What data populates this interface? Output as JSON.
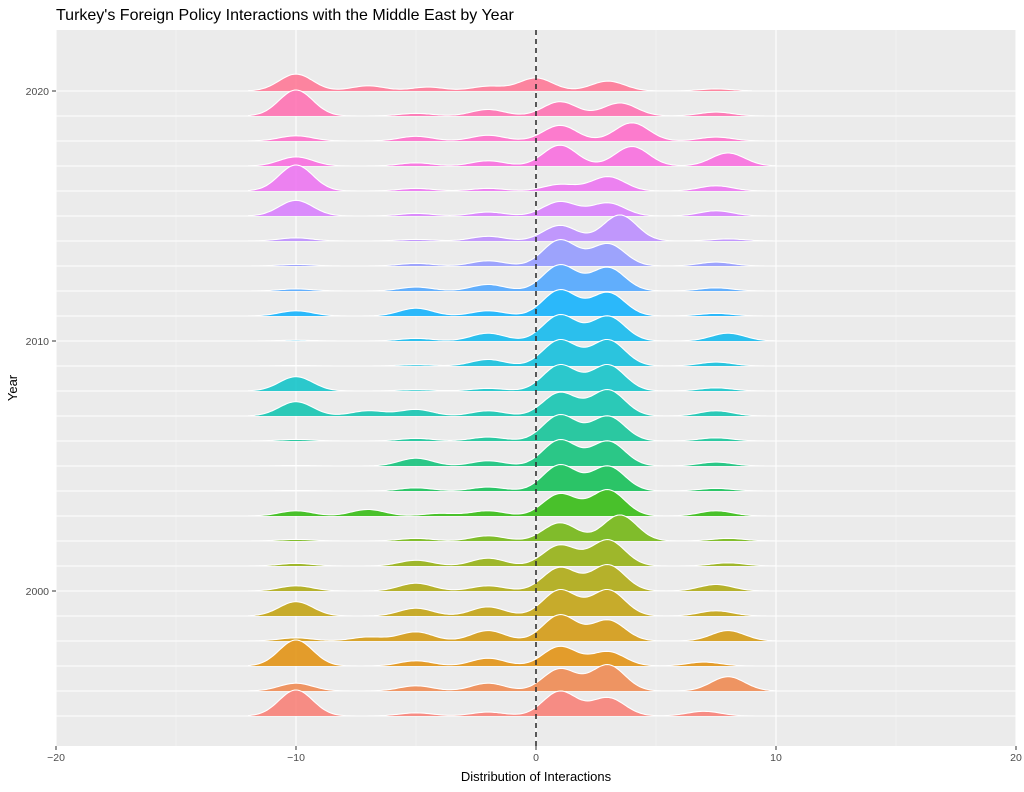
{
  "chart_data": {
    "type": "area",
    "subtype": "ridgeline",
    "title": "Turkey's Foreign Policy Interactions with the Middle East by Year",
    "xlabel": "Distribution of Interactions",
    "ylabel": "Year",
    "xlim": [
      -20,
      20
    ],
    "x_ticks": [
      -20,
      -10,
      0,
      10,
      20
    ],
    "x_tick_labels": [
      "−20",
      "−10",
      "0",
      "10",
      "20"
    ],
    "y_ticks": [
      2000,
      2010,
      2020
    ],
    "y_tick_labels": [
      "2000",
      "2010",
      "2020"
    ],
    "years": [
      1995,
      1996,
      1997,
      1998,
      1999,
      2000,
      2001,
      2002,
      2003,
      2004,
      2005,
      2006,
      2007,
      2008,
      2009,
      2010,
      2011,
      2012,
      2013,
      2014,
      2015,
      2016,
      2017,
      2018,
      2019,
      2020
    ],
    "reference_line": {
      "x": 0,
      "style": "dashed"
    },
    "background": "#ebebeb",
    "grid": true,
    "legend": "none",
    "peaks": [
      {
        "year": 1995,
        "range": [
          -12,
          11
        ],
        "peaks": [
          [
            -10,
            1.0
          ],
          [
            -5,
            0.12
          ],
          [
            -2,
            0.15
          ],
          [
            1,
            0.95
          ],
          [
            3,
            0.7
          ],
          [
            7,
            0.18
          ]
        ]
      },
      {
        "year": 1996,
        "range": [
          -12,
          10
        ],
        "peaks": [
          [
            -10,
            0.3
          ],
          [
            -5,
            0.2
          ],
          [
            -2,
            0.3
          ],
          [
            1,
            0.85
          ],
          [
            3,
            1.0
          ],
          [
            8,
            0.55
          ]
        ]
      },
      {
        "year": 1997,
        "range": [
          -12,
          11
        ],
        "peaks": [
          [
            -10,
            1.0
          ],
          [
            -5,
            0.2
          ],
          [
            -2,
            0.3
          ],
          [
            1,
            0.75
          ],
          [
            3,
            0.55
          ],
          [
            7,
            0.15
          ]
        ]
      },
      {
        "year": 1998,
        "range": [
          -12,
          10
        ],
        "peaks": [
          [
            -10,
            0.12
          ],
          [
            -7,
            0.15
          ],
          [
            -5,
            0.35
          ],
          [
            -2,
            0.4
          ],
          [
            1,
            1.0
          ],
          [
            3,
            0.8
          ],
          [
            8,
            0.4
          ]
        ]
      },
      {
        "year": 1999,
        "range": [
          -12,
          10
        ],
        "peaks": [
          [
            -10,
            0.55
          ],
          [
            -5,
            0.3
          ],
          [
            -2,
            0.35
          ],
          [
            1,
            1.0
          ],
          [
            3,
            1.0
          ],
          [
            7.5,
            0.2
          ]
        ]
      },
      {
        "year": 2000,
        "range": [
          -12,
          10
        ],
        "peaks": [
          [
            -10,
            0.2
          ],
          [
            -5,
            0.3
          ],
          [
            -2,
            0.2
          ],
          [
            1,
            0.9
          ],
          [
            3,
            1.0
          ],
          [
            7.5,
            0.25
          ]
        ]
      },
      {
        "year": 2001,
        "range": [
          -12,
          10
        ],
        "peaks": [
          [
            -10,
            0.1
          ],
          [
            -5,
            0.22
          ],
          [
            -2,
            0.3
          ],
          [
            1,
            0.8
          ],
          [
            3,
            1.0
          ],
          [
            8,
            0.12
          ]
        ]
      },
      {
        "year": 2002,
        "range": [
          -12,
          10
        ],
        "peaks": [
          [
            -10,
            0.06
          ],
          [
            -5,
            0.1
          ],
          [
            -2,
            0.2
          ],
          [
            1,
            0.7
          ],
          [
            3.5,
            1.0
          ],
          [
            8,
            0.1
          ]
        ]
      },
      {
        "year": 2003,
        "range": [
          -12,
          10
        ],
        "peaks": [
          [
            -10,
            0.2
          ],
          [
            -7,
            0.25
          ],
          [
            -4,
            0.1
          ],
          [
            -2,
            0.2
          ],
          [
            1,
            0.85
          ],
          [
            3,
            1.0
          ],
          [
            7.5,
            0.2
          ]
        ]
      },
      {
        "year": 2004,
        "range": [
          -12,
          10
        ],
        "peaks": [
          [
            -10,
            0.02
          ],
          [
            -5,
            0.12
          ],
          [
            -2,
            0.15
          ],
          [
            1,
            1.0
          ],
          [
            3,
            0.95
          ],
          [
            7.5,
            0.1
          ]
        ]
      },
      {
        "year": 2005,
        "range": [
          -12,
          10
        ],
        "peaks": [
          [
            -10,
            0.02
          ],
          [
            -5,
            0.3
          ],
          [
            -2,
            0.2
          ],
          [
            1,
            1.0
          ],
          [
            3,
            0.95
          ],
          [
            7.5,
            0.15
          ]
        ]
      },
      {
        "year": 2006,
        "range": [
          -12,
          10
        ],
        "peaks": [
          [
            -10,
            0.06
          ],
          [
            -5,
            0.1
          ],
          [
            -2,
            0.15
          ],
          [
            1,
            1.0
          ],
          [
            3,
            0.95
          ],
          [
            7.5,
            0.12
          ]
        ]
      },
      {
        "year": 2007,
        "range": [
          -12,
          10
        ],
        "peaks": [
          [
            -10,
            0.55
          ],
          [
            -7,
            0.2
          ],
          [
            -5,
            0.25
          ],
          [
            -2,
            0.2
          ],
          [
            1,
            0.9
          ],
          [
            3,
            1.0
          ],
          [
            7.5,
            0.2
          ]
        ]
      },
      {
        "year": 2008,
        "range": [
          -12,
          11
        ],
        "peaks": [
          [
            -10,
            0.55
          ],
          [
            -5,
            0.05
          ],
          [
            -2,
            0.1
          ],
          [
            1,
            1.0
          ],
          [
            3,
            1.0
          ],
          [
            7.5,
            0.12
          ]
        ]
      },
      {
        "year": 2009,
        "range": [
          -12,
          10
        ],
        "peaks": [
          [
            -10,
            0.02
          ],
          [
            -5,
            0.05
          ],
          [
            -2,
            0.25
          ],
          [
            1,
            1.0
          ],
          [
            3,
            1.0
          ],
          [
            7.5,
            0.15
          ]
        ]
      },
      {
        "year": 2010,
        "range": [
          -12,
          10
        ],
        "peaks": [
          [
            -10,
            0.03
          ],
          [
            -5,
            0.1
          ],
          [
            -2,
            0.3
          ],
          [
            1,
            1.0
          ],
          [
            3,
            0.95
          ],
          [
            8,
            0.3
          ]
        ]
      },
      {
        "year": 2011,
        "range": [
          -12,
          10
        ],
        "peaks": [
          [
            -10,
            0.2
          ],
          [
            -5,
            0.3
          ],
          [
            -2,
            0.2
          ],
          [
            1,
            1.0
          ],
          [
            3,
            0.9
          ],
          [
            7.5,
            0.1
          ]
        ]
      },
      {
        "year": 2012,
        "range": [
          -12,
          10
        ],
        "peaks": [
          [
            -10,
            0.08
          ],
          [
            -5,
            0.15
          ],
          [
            -2,
            0.25
          ],
          [
            1,
            1.0
          ],
          [
            3,
            0.9
          ],
          [
            7.5,
            0.12
          ]
        ]
      },
      {
        "year": 2013,
        "range": [
          -12,
          10
        ],
        "peaks": [
          [
            -10,
            0.06
          ],
          [
            -5,
            0.1
          ],
          [
            -2,
            0.2
          ],
          [
            1,
            1.0
          ],
          [
            3,
            0.85
          ],
          [
            7.5,
            0.15
          ]
        ]
      },
      {
        "year": 2014,
        "range": [
          -12,
          10
        ],
        "peaks": [
          [
            -10,
            0.12
          ],
          [
            -5,
            0.06
          ],
          [
            -2,
            0.18
          ],
          [
            1,
            0.6
          ],
          [
            3.5,
            1.0
          ],
          [
            8,
            0.08
          ]
        ]
      },
      {
        "year": 2015,
        "range": [
          -12,
          11
        ],
        "peaks": [
          [
            -10,
            0.6
          ],
          [
            -5,
            0.1
          ],
          [
            -2,
            0.15
          ],
          [
            1,
            0.55
          ],
          [
            3,
            0.5
          ],
          [
            7.5,
            0.2
          ]
        ]
      },
      {
        "year": 2016,
        "range": [
          -12,
          10
        ],
        "peaks": [
          [
            -10,
            1.0
          ],
          [
            -5,
            0.1
          ],
          [
            -2,
            0.1
          ],
          [
            1,
            0.25
          ],
          [
            3,
            0.55
          ],
          [
            7.5,
            0.2
          ]
        ]
      },
      {
        "year": 2017,
        "range": [
          -12,
          10
        ],
        "peaks": [
          [
            -10,
            0.35
          ],
          [
            -5,
            0.12
          ],
          [
            -2,
            0.2
          ],
          [
            1,
            0.8
          ],
          [
            4,
            0.75
          ],
          [
            8,
            0.5
          ]
        ]
      },
      {
        "year": 2018,
        "range": [
          -12,
          10
        ],
        "peaks": [
          [
            -10,
            0.2
          ],
          [
            -5,
            0.18
          ],
          [
            -2,
            0.22
          ],
          [
            1,
            0.6
          ],
          [
            4,
            0.7
          ],
          [
            7.5,
            0.15
          ]
        ]
      },
      {
        "year": 2019,
        "range": [
          -12,
          10
        ],
        "peaks": [
          [
            -10,
            1.0
          ],
          [
            -5,
            0.1
          ],
          [
            -2,
            0.25
          ],
          [
            1,
            0.55
          ],
          [
            3.5,
            0.5
          ],
          [
            7.5,
            0.15
          ]
        ]
      },
      {
        "year": 2020,
        "range": [
          -12,
          9
        ],
        "peaks": [
          [
            -10,
            0.65
          ],
          [
            -7,
            0.2
          ],
          [
            -4.5,
            0.15
          ],
          [
            -2,
            0.18
          ],
          [
            0,
            0.5
          ],
          [
            3,
            0.38
          ],
          [
            7.5,
            0.08
          ]
        ]
      }
    ]
  }
}
